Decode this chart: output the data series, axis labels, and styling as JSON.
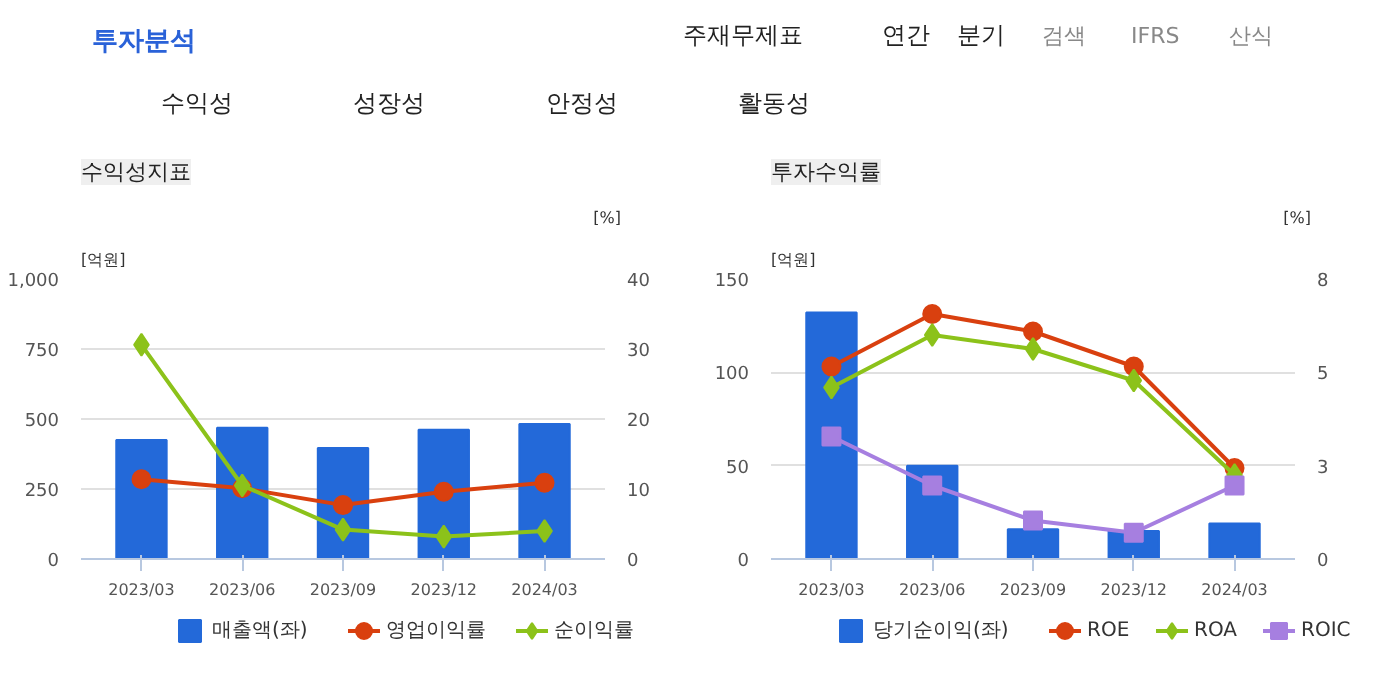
{
  "chart_data": [
    {
      "type": "bar",
      "title": "수익성지표",
      "ylabel": "[억원]",
      "y2label": "[%]",
      "categories": [
        "2023/03",
        "2023/06",
        "2023/09",
        "2023/12",
        "2024/03"
      ],
      "series": [
        {
          "name": "매출액(좌)",
          "color": "#2369d9",
          "values": [
            425,
            469,
            396,
            462,
            482
          ]
        },
        {
          "name": "영업이익률",
          "type": "line",
          "axis": "y2",
          "marker": "circle",
          "color": "#d9400f",
          "values": [
            11.4,
            10.1,
            7.7,
            9.6,
            10.9
          ]
        },
        {
          "name": "순이익률",
          "type": "line",
          "axis": "y2",
          "marker": "diamond",
          "color": "#8cc21a",
          "values": [
            30.6,
            10.5,
            4.2,
            3.2,
            4.0
          ]
        }
      ],
      "ylim": [
        0,
        1000
      ],
      "yticks": [
        0,
        250,
        500,
        750,
        {
          "value": 1000,
          "label": "1,000"
        }
      ],
      "y2lim": [
        0,
        40
      ],
      "y2ticks": [
        0,
        10,
        20,
        30,
        40
      ],
      "grid": "y",
      "legend": "bottom",
      "annotations": [
        "투자분석",
        "주재무제표",
        "연간",
        "분기",
        "검색",
        "IFRS",
        "산식",
        "수익성",
        "성장성",
        "안정성",
        "활동성"
      ]
    },
    {
      "type": "bar",
      "title": "투자수익률",
      "ylabel": "[억원]",
      "y2label": "[%]",
      "categories": [
        "2023/03",
        "2023/06",
        "2023/09",
        "2023/12",
        "2024/03"
      ],
      "series": [
        {
          "name": "당기순이익(좌)",
          "color": "#2369d9",
          "values": [
            132,
            50,
            16,
            15,
            19
          ]
        },
        {
          "name": "ROE",
          "type": "line",
          "axis": "y2",
          "marker": "circle",
          "color": "#d9400f",
          "values": [
            5.5,
            7.0,
            6.5,
            5.5,
            2.6
          ]
        },
        {
          "name": "ROA",
          "type": "line",
          "axis": "y2",
          "marker": "diamond",
          "color": "#8cc21a",
          "values": [
            4.9,
            6.4,
            6.0,
            5.1,
            2.4
          ]
        },
        {
          "name": "ROIC",
          "type": "line",
          "axis": "y2",
          "marker": "square",
          "color": "#a67fe0",
          "values": [
            3.5,
            2.1,
            1.1,
            0.75,
            2.1
          ]
        }
      ],
      "ylim": [
        0,
        150
      ],
      "yticks": [
        0,
        50,
        100,
        150
      ],
      "y2lim": [
        0,
        8
      ],
      "y2ticks": [
        0,
        {
          "value": 2.667,
          "label": "3"
        },
        {
          "value": 5.333,
          "label": "5"
        },
        8
      ],
      "grid": "y",
      "legend": "bottom"
    }
  ]
}
